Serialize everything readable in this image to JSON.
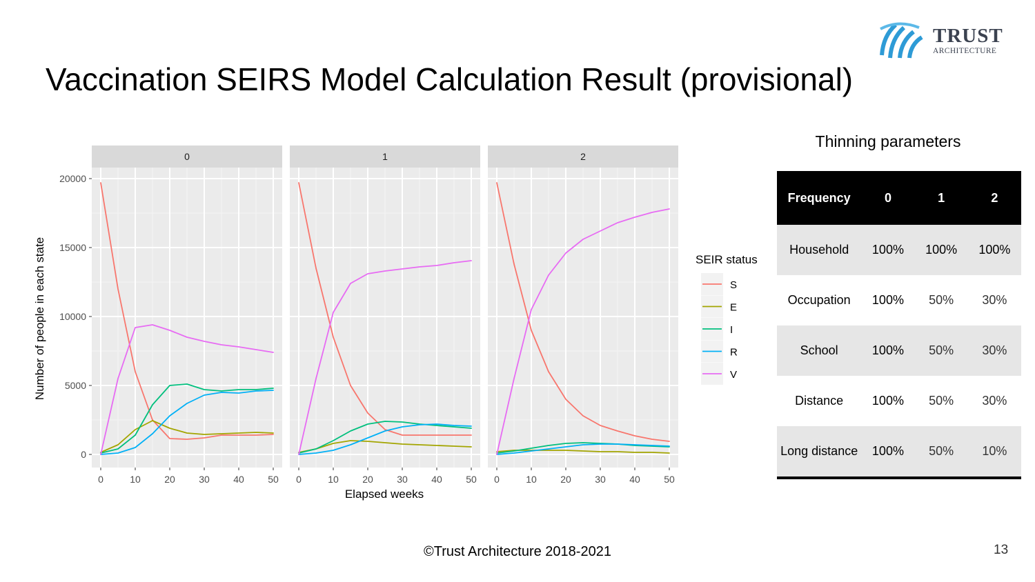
{
  "slide": {
    "title": "Vaccination SEIRS Model Calculation Result (provisional)",
    "footer": "©Trust Architecture 2018-2021",
    "page_number": "13",
    "logo": {
      "word": "TRUST",
      "sub": "ARCHITECTURE",
      "mark_color": "#2e9bd6"
    }
  },
  "thinning": {
    "title": "Thinning parameters",
    "header": [
      "Frequency",
      "0",
      "1",
      "2"
    ],
    "rows": [
      {
        "label": "Household",
        "values": [
          "100%",
          "100%",
          "100%"
        ]
      },
      {
        "label": "Occupation",
        "values": [
          "100%",
          "50%",
          "30%"
        ]
      },
      {
        "label": "School",
        "values": [
          "100%",
          "50%",
          "30%"
        ]
      },
      {
        "label": "Distance",
        "values": [
          "100%",
          "50%",
          "30%"
        ]
      },
      {
        "label": "Long distance",
        "values": [
          "100%",
          "50%",
          "10%"
        ]
      }
    ]
  },
  "chart_data": {
    "type": "line",
    "xlabel": "Elapsed weeks",
    "ylabel": "Number of people in each state",
    "xlim": [
      0,
      50
    ],
    "ylim": [
      0,
      20000
    ],
    "x_ticks": [
      0,
      10,
      20,
      30,
      40,
      50
    ],
    "y_ticks": [
      0,
      5000,
      10000,
      15000,
      20000
    ],
    "y_tick_labels": [
      "0",
      "5000",
      "10000",
      "15000",
      "20000"
    ],
    "grid": true,
    "legend": {
      "title": "SEIR status",
      "position": "right",
      "entries": [
        "S",
        "E",
        "I",
        "R",
        "V"
      ]
    },
    "colors": {
      "S": "#F8766D",
      "E": "#A3A500",
      "I": "#00BF7D",
      "R": "#00B0F6",
      "V": "#E76BF3"
    },
    "x": [
      0,
      5,
      10,
      15,
      20,
      25,
      30,
      35,
      40,
      45,
      50
    ],
    "panels": [
      {
        "label": "0",
        "series": [
          {
            "name": "S",
            "values": [
              19700,
              12000,
              6000,
              2500,
              1150,
              1100,
              1200,
              1400,
              1400,
              1400,
              1450
            ]
          },
          {
            "name": "E",
            "values": [
              150,
              700,
              1800,
              2450,
              1900,
              1550,
              1450,
              1500,
              1550,
              1600,
              1550
            ]
          },
          {
            "name": "I",
            "values": [
              100,
              400,
              1400,
              3600,
              5000,
              5100,
              4700,
              4600,
              4700,
              4700,
              4800
            ]
          },
          {
            "name": "R",
            "values": [
              0,
              100,
              500,
              1500,
              2800,
              3700,
              4300,
              4500,
              4450,
              4600,
              4650
            ]
          },
          {
            "name": "V",
            "values": [
              0,
              5500,
              9200,
              9400,
              9000,
              8500,
              8200,
              7950,
              7800,
              7600,
              7400
            ]
          }
        ]
      },
      {
        "label": "1",
        "series": [
          {
            "name": "S",
            "values": [
              19700,
              13500,
              8500,
              5000,
              3000,
              1800,
              1400,
              1400,
              1400,
              1400,
              1400
            ]
          },
          {
            "name": "E",
            "values": [
              150,
              400,
              800,
              1000,
              950,
              850,
              750,
              700,
              650,
              600,
              550
            ]
          },
          {
            "name": "I",
            "values": [
              100,
              400,
              1000,
              1700,
              2200,
              2400,
              2350,
              2200,
              2100,
              2000,
              1900
            ]
          },
          {
            "name": "R",
            "values": [
              0,
              100,
              300,
              700,
              1200,
              1700,
              2000,
              2150,
              2200,
              2100,
              2050
            ]
          },
          {
            "name": "V",
            "values": [
              0,
              5500,
              10300,
              12400,
              13100,
              13300,
              13450,
              13600,
              13700,
              13900,
              14050
            ]
          }
        ]
      },
      {
        "label": "2",
        "series": [
          {
            "name": "S",
            "values": [
              19700,
              13800,
              9000,
              6000,
              4000,
              2800,
              2100,
              1700,
              1350,
              1100,
              950
            ]
          },
          {
            "name": "E",
            "values": [
              200,
              300,
              300,
              300,
              300,
              250,
              200,
              200,
              150,
              150,
              100
            ]
          },
          {
            "name": "I",
            "values": [
              100,
              250,
              450,
              650,
              800,
              850,
              800,
              750,
              650,
              600,
              550
            ]
          },
          {
            "name": "R",
            "values": [
              0,
              100,
              250,
              400,
              550,
              700,
              750,
              750,
              700,
              650,
              600
            ]
          },
          {
            "name": "V",
            "values": [
              0,
              5500,
              10500,
              13000,
              14600,
              15600,
              16200,
              16800,
              17200,
              17550,
              17800
            ]
          }
        ]
      }
    ]
  }
}
